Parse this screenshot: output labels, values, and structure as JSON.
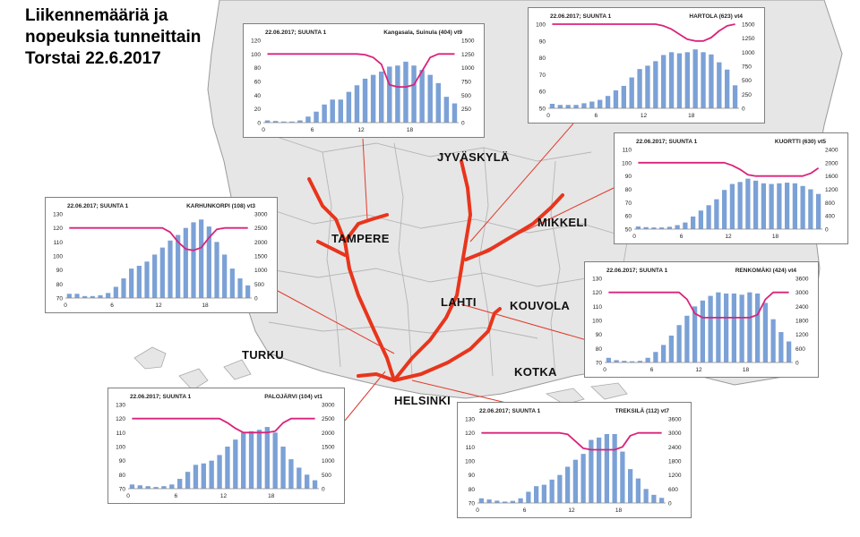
{
  "title": {
    "line1": "Liikennemääriä ja",
    "line2": "nopeuksia tunneittain",
    "line3": "Torstai 22.6.2017"
  },
  "cities": {
    "jyvaskyla": "JYVÄSKYLÄ",
    "tampere": "TAMPERE",
    "mikkeli": "MIKKELI",
    "lahti": "LAHTI",
    "kouvola": "KOUVOLA",
    "turku": "TURKU",
    "kotka": "KOTKA",
    "helsinki": "HELSINKI"
  },
  "colors": {
    "bars": "#7ba1d6",
    "speed_line": "#d9237a",
    "roads": "#e8351c",
    "land": "#e6e6e6",
    "borders": "#b5b5b5",
    "leader_lines": "#e23a2a"
  },
  "chart_data": [
    {
      "id": "kangasala",
      "type": "bar",
      "header_left": "22.06.2017; SUUNTA 1",
      "header_right": "Kangasala, Suinula (404) vt9",
      "x_ticks": [
        "0",
        "6",
        "12",
        "18"
      ],
      "left_axis": {
        "ylim": [
          0,
          120
        ],
        "ticks": [
          "0",
          "20",
          "40",
          "60",
          "80",
          "100",
          "120"
        ]
      },
      "right_axis": {
        "ylim": [
          0,
          1500
        ],
        "ticks": [
          "0",
          "250",
          "500",
          "750",
          "1000",
          "1250",
          "1500"
        ]
      },
      "series": [
        {
          "axis": "right",
          "kind": "bar",
          "values": [
            40,
            30,
            20,
            20,
            40,
            110,
            200,
            330,
            420,
            420,
            560,
            680,
            800,
            870,
            930,
            1020,
            1040,
            1110,
            1040,
            960,
            870,
            720,
            470,
            350
          ]
        },
        {
          "axis": "left",
          "kind": "line",
          "values": [
            100,
            100,
            100,
            100,
            100,
            100,
            100,
            100,
            100,
            100,
            100,
            100,
            99,
            95,
            85,
            55,
            52,
            52,
            55,
            75,
            95,
            100,
            100,
            100
          ]
        }
      ]
    },
    {
      "id": "hartola",
      "type": "bar",
      "header_left": "22.06.2017; SUUNTA 1",
      "header_right": "HARTOLA (623) vt4",
      "x_ticks": [
        "0",
        "6",
        "12",
        "18"
      ],
      "left_axis": {
        "ylim": [
          50,
          100
        ],
        "ticks": [
          "50",
          "60",
          "70",
          "80",
          "90",
          "100"
        ]
      },
      "right_axis": {
        "ylim": [
          0,
          1500
        ],
        "ticks": [
          "0",
          "250",
          "500",
          "750",
          "1000",
          "1250",
          "1500"
        ]
      },
      "series": [
        {
          "axis": "right",
          "kind": "bar",
          "values": [
            80,
            60,
            60,
            60,
            90,
            120,
            150,
            220,
            320,
            400,
            550,
            700,
            760,
            840,
            950,
            1000,
            980,
            1000,
            1050,
            1000,
            960,
            820,
            690,
            410
          ]
        },
        {
          "axis": "left",
          "kind": "line",
          "values": [
            100,
            100,
            100,
            100,
            100,
            100,
            100,
            100,
            100,
            100,
            100,
            100,
            100,
            100,
            99,
            97,
            94,
            91,
            90,
            90,
            92,
            96,
            99,
            100
          ]
        }
      ]
    },
    {
      "id": "kuortti",
      "type": "bar",
      "header_left": "22.06.2017; SUUNTA 1",
      "header_right": "KUORTTI (630) vt5",
      "x_ticks": [
        "0",
        "6",
        "12",
        "18"
      ],
      "left_axis": {
        "ylim": [
          50,
          110
        ],
        "ticks": [
          "50",
          "60",
          "70",
          "80",
          "90",
          "100",
          "110"
        ]
      },
      "right_axis": {
        "ylim": [
          0,
          2400
        ],
        "ticks": [
          "0",
          "400",
          "800",
          "1200",
          "1600",
          "2000",
          "2400"
        ]
      },
      "series": [
        {
          "axis": "right",
          "kind": "bar",
          "values": [
            80,
            60,
            50,
            50,
            70,
            120,
            200,
            380,
            560,
            720,
            900,
            1180,
            1360,
            1420,
            1520,
            1460,
            1380,
            1360,
            1380,
            1400,
            1380,
            1300,
            1200,
            1060
          ]
        },
        {
          "axis": "left",
          "kind": "line",
          "values": [
            100,
            100,
            100,
            100,
            100,
            100,
            100,
            100,
            100,
            100,
            100,
            100,
            98,
            95,
            91,
            90,
            90,
            90,
            90,
            90,
            90,
            90,
            92,
            96
          ]
        }
      ]
    },
    {
      "id": "karhunkorpi",
      "type": "bar",
      "header_left": "22.06.2017; SUUNTA 1",
      "header_right": "KARHUNKORPI (108) vt3",
      "x_ticks": [
        "0",
        "6",
        "12",
        "18"
      ],
      "left_axis": {
        "ylim": [
          70,
          130
        ],
        "ticks": [
          "70",
          "80",
          "90",
          "100",
          "110",
          "120",
          "130"
        ]
      },
      "right_axis": {
        "ylim": [
          0,
          3000
        ],
        "ticks": [
          "0",
          "500",
          "1000",
          "1500",
          "2000",
          "2500",
          "3000"
        ]
      },
      "series": [
        {
          "axis": "right",
          "kind": "bar",
          "values": [
            150,
            150,
            70,
            70,
            100,
            180,
            400,
            700,
            1050,
            1150,
            1300,
            1550,
            1800,
            2050,
            2250,
            2500,
            2700,
            2800,
            2550,
            2000,
            1550,
            1050,
            700,
            450
          ]
        },
        {
          "axis": "left",
          "kind": "line",
          "values": [
            120,
            120,
            120,
            120,
            120,
            120,
            120,
            120,
            120,
            120,
            120,
            120,
            120,
            117,
            110,
            105,
            104,
            106,
            113,
            119,
            120,
            120,
            120,
            120
          ]
        }
      ]
    },
    {
      "id": "renkomaki",
      "type": "bar",
      "header_left": "22.06.2017; SUUNTA 1",
      "header_right": "RENKOMÄKI (424) vt4",
      "x_ticks": [
        "0",
        "6",
        "12",
        "18"
      ],
      "left_axis": {
        "ylim": [
          70,
          130
        ],
        "ticks": [
          "70",
          "80",
          "90",
          "100",
          "110",
          "120",
          "130"
        ]
      },
      "right_axis": {
        "ylim": [
          0,
          3600
        ],
        "ticks": [
          "0",
          "600",
          "1200",
          "1800",
          "2400",
          "3000",
          "3600"
        ]
      },
      "series": [
        {
          "axis": "right",
          "kind": "bar",
          "values": [
            200,
            100,
            70,
            50,
            70,
            200,
            450,
            750,
            1150,
            1600,
            2000,
            2400,
            2650,
            2850,
            3000,
            2950,
            2950,
            2900,
            3000,
            2950,
            2550,
            1850,
            1300,
            900
          ]
        },
        {
          "axis": "left",
          "kind": "line",
          "values": [
            120,
            120,
            120,
            120,
            120,
            120,
            120,
            120,
            120,
            120,
            115,
            105,
            102,
            102,
            102,
            102,
            102,
            102,
            102,
            104,
            115,
            120,
            120,
            120
          ]
        }
      ]
    },
    {
      "id": "palojarvi",
      "type": "bar",
      "header_left": "22.06.2017; SUUNTA 1",
      "header_right": "PALOJÄRVI (104) vt1",
      "x_ticks": [
        "0",
        "6",
        "12",
        "18"
      ],
      "left_axis": {
        "ylim": [
          70,
          130
        ],
        "ticks": [
          "70",
          "80",
          "90",
          "100",
          "110",
          "120",
          "130"
        ]
      },
      "right_axis": {
        "ylim": [
          0,
          3000
        ],
        "ticks": [
          "0",
          "500",
          "1000",
          "1500",
          "2000",
          "2500",
          "3000"
        ]
      },
      "series": [
        {
          "axis": "right",
          "kind": "bar",
          "values": [
            150,
            120,
            90,
            60,
            90,
            150,
            350,
            600,
            850,
            900,
            1000,
            1200,
            1500,
            1750,
            2000,
            2050,
            2100,
            2200,
            2000,
            1500,
            1050,
            750,
            500,
            300
          ]
        },
        {
          "axis": "left",
          "kind": "line",
          "values": [
            120,
            120,
            120,
            120,
            120,
            120,
            120,
            120,
            120,
            120,
            120,
            120,
            117,
            113,
            110,
            110,
            110,
            110,
            111,
            117,
            120,
            120,
            120,
            120
          ]
        }
      ]
    },
    {
      "id": "treksila",
      "type": "bar",
      "header_left": "22.06.2017; SUUNTA 1",
      "header_right": "TREKSILÄ (112) vt7",
      "x_ticks": [
        "0",
        "6",
        "12",
        "18"
      ],
      "left_axis": {
        "ylim": [
          70,
          130
        ],
        "ticks": [
          "70",
          "80",
          "90",
          "100",
          "110",
          "120",
          "130"
        ]
      },
      "right_axis": {
        "ylim": [
          0,
          3600
        ],
        "ticks": [
          "0",
          "600",
          "1200",
          "1800",
          "2400",
          "3000",
          "3600"
        ]
      },
      "series": [
        {
          "axis": "right",
          "kind": "bar",
          "values": [
            200,
            150,
            100,
            60,
            90,
            200,
            480,
            720,
            780,
            1000,
            1200,
            1550,
            1850,
            2100,
            2700,
            2800,
            2950,
            2950,
            2200,
            1450,
            1050,
            600,
            350,
            220
          ]
        },
        {
          "axis": "left",
          "kind": "line",
          "values": [
            120,
            120,
            120,
            120,
            120,
            120,
            120,
            120,
            120,
            120,
            120,
            119,
            114,
            109,
            108,
            108,
            108,
            108,
            110,
            118,
            120,
            120,
            120,
            120
          ]
        }
      ]
    }
  ]
}
